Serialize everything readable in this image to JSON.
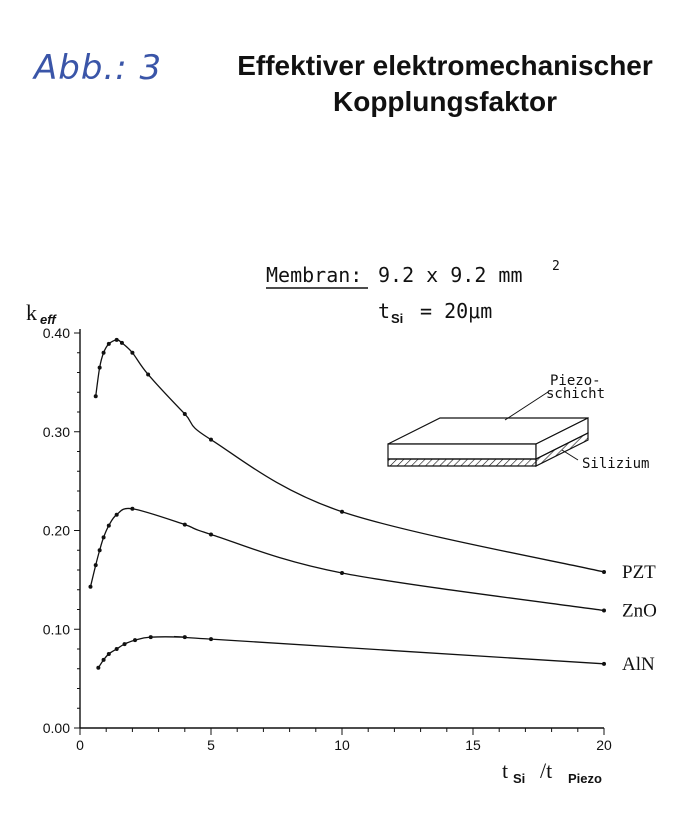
{
  "handwritten_label": "Abb.: 3",
  "title_line1": "Effektiver elektromechanischer",
  "title_line2": "Kopplungsfaktor",
  "membrane": {
    "label": "Membran:",
    "size_text": "9.2  x  9.2  mm",
    "size_exp": "2",
    "thickness_prefix": "t",
    "thickness_sub": "Si",
    "thickness_value": "=  20μm"
  },
  "inset": {
    "top_label_line1": "Piezo-",
    "top_label_line2": "schicht",
    "bottom_label": "Silizium"
  },
  "chart_data": {
    "type": "line",
    "ylabel_main": "k",
    "ylabel_sub": "eff",
    "xlabel_main": "t",
    "xlabel_sub1": "Si",
    "xlabel_sep": "/t",
    "xlabel_sub2": "Piezo",
    "xlim": [
      0,
      20
    ],
    "ylim": [
      0,
      0.4
    ],
    "xticks": [
      "0",
      "5",
      "10",
      "15",
      "20"
    ],
    "yticks": [
      "0.00",
      "0.10",
      "0.20",
      "0.30",
      "0.40"
    ],
    "xtick_values": [
      0,
      5,
      10,
      15,
      20
    ],
    "ytick_values": [
      0,
      0.1,
      0.2,
      0.3,
      0.4
    ],
    "series": [
      {
        "name": "PZT",
        "x": [
          0.6,
          0.75,
          0.9,
          1.1,
          1.4,
          1.6,
          2.0,
          2.6,
          4.0,
          5.0,
          10.0,
          20.0
        ],
        "y": [
          0.336,
          0.365,
          0.38,
          0.389,
          0.393,
          0.39,
          0.38,
          0.358,
          0.318,
          0.292,
          0.219,
          0.158
        ]
      },
      {
        "name": "ZnO",
        "x": [
          0.4,
          0.6,
          0.75,
          0.9,
          1.1,
          1.4,
          2.0,
          4.0,
          5.0,
          10.0,
          20.0
        ],
        "y": [
          0.143,
          0.165,
          0.18,
          0.193,
          0.205,
          0.216,
          0.222,
          0.206,
          0.196,
          0.157,
          0.119
        ]
      },
      {
        "name": "AlN",
        "x": [
          0.7,
          0.9,
          1.1,
          1.4,
          1.7,
          2.1,
          2.7,
          4.0,
          5.0,
          20.0
        ],
        "y": [
          0.061,
          0.069,
          0.075,
          0.08,
          0.085,
          0.089,
          0.092,
          0.092,
          0.09,
          0.065
        ]
      }
    ]
  }
}
